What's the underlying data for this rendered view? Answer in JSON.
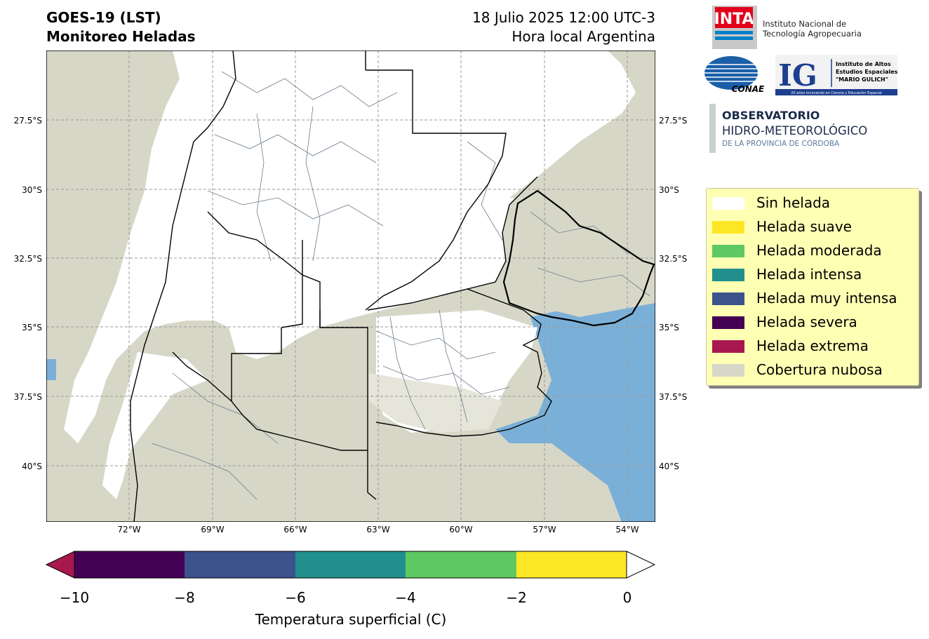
{
  "header": {
    "title_line1": "GOES-19 (LST)",
    "title_line2": "Monitoreo Heladas",
    "datetime": "18 Julio 2025 12:00 UTC-3",
    "timezone_note": "Hora local Argentina"
  },
  "map": {
    "lat_labels": [
      "27.5°S",
      "30°S",
      "32.5°S",
      "35°S",
      "37.5°S",
      "40°S"
    ],
    "lon_labels": [
      "72°W",
      "69°W",
      "66°W",
      "63°W",
      "60°W",
      "57°W",
      "54°W"
    ],
    "grid": true,
    "colors": {
      "sin_helada": "#ffffff",
      "cloud_cover": "#d7d7c8",
      "water_cold": "#7ab0d8",
      "border": "#000000",
      "departments": "#6b7c8c"
    }
  },
  "colorbar": {
    "ticks": [
      "−10",
      "−8",
      "−6",
      "−4",
      "−2",
      "0"
    ],
    "label": "Temperatura superficial (C)",
    "colors": [
      "#a8184f",
      "#440154",
      "#3b528b",
      "#21908d",
      "#5ec962",
      "#fde725",
      "#ffffff"
    ]
  },
  "legend": {
    "items": [
      {
        "label": "Sin helada",
        "color": "#ffffff"
      },
      {
        "label": "Helada suave",
        "color": "#fde725"
      },
      {
        "label": "Helada moderada",
        "color": "#5ec962"
      },
      {
        "label": "Helada intensa",
        "color": "#21908d"
      },
      {
        "label": "Helada muy intensa",
        "color": "#3b528b"
      },
      {
        "label": "Helada severa",
        "color": "#440154"
      },
      {
        "label": "Helada extrema",
        "color": "#a8184f"
      },
      {
        "label": "Cobertura nubosa",
        "color": "#d7d7c8"
      }
    ]
  },
  "logos": {
    "inta_mark": "INTA",
    "inta_line1": "Instituto Nacional de",
    "inta_line2": "Tecnología Agropecuaria",
    "conae_mark": "CONAE",
    "ig_mark": "IG",
    "ig_line1": "Instituto de Altos",
    "ig_line2": "Estudios Espaciales",
    "ig_line3": "\"MARIO GULICH\"",
    "ig_tagline": "20 años innovando en Ciencia y Educación Espacial",
    "obs_line1": "OBSERVATORIO",
    "obs_line2": "HIDRO-METEOROLÓGICO",
    "obs_line3": "DE LA PROVINCIA DE CÓRDOBA"
  }
}
